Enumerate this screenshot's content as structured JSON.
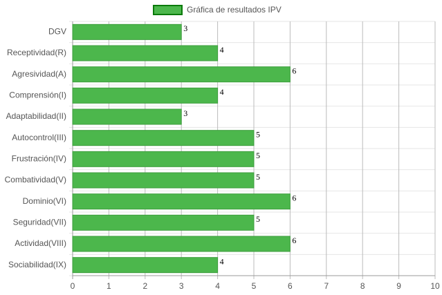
{
  "chart_data": {
    "type": "bar",
    "orientation": "horizontal",
    "legend": "top",
    "categories": [
      "DGV",
      "Receptividad(R)",
      "Agresividad(A)",
      "Comprensión(I)",
      "Adaptabilidad(II)",
      "Autocontrol(III)",
      "Frustración(IV)",
      "Combatividad(V)",
      "Dominio(VI)",
      "Seguridad(VII)",
      "Actividad(VIII)",
      "Sociabilidad(IX)"
    ],
    "series": [
      {
        "name": "Gráfica de resultados IPV",
        "color": "#4cb74c",
        "values": [
          3,
          4,
          6,
          4,
          3,
          5,
          5,
          5,
          6,
          5,
          6,
          4
        ]
      }
    ],
    "xlim": [
      0,
      10
    ],
    "xticks": [
      0,
      1,
      2,
      3,
      4,
      5,
      6,
      7,
      8,
      9,
      10
    ],
    "grid": true
  }
}
